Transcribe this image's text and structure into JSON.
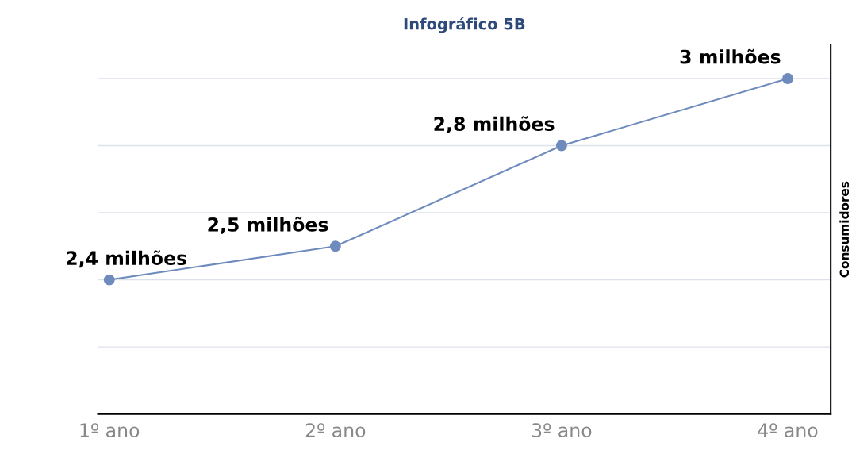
{
  "chart_data": {
    "type": "line",
    "title": "Infográfico 5B",
    "ylabel": "Consumidores",
    "categories": [
      "1º ano",
      "2º ano",
      "3º ano",
      "4º ano"
    ],
    "series": [
      {
        "color": "#6f8bbd",
        "values": [
          2.4,
          2.5,
          2.8,
          3
        ],
        "value_labels": [
          "2,4 milhões",
          "2,5 milhões",
          "2,8 milhões",
          "3 milhões"
        ]
      }
    ],
    "ylim": [
      2.0,
      3.1
    ],
    "yticks": [
      {
        "value": 2.2,
        "label": null
      },
      {
        "value": 2.4,
        "label": null
      },
      {
        "value": 2.6,
        "label": null
      },
      {
        "value": 2.8,
        "label": null
      },
      {
        "value": 3.0,
        "label": null
      }
    ],
    "grid": "y",
    "marker": "circle",
    "line_style": "solid",
    "tick_labels": "x",
    "legend": false
  }
}
